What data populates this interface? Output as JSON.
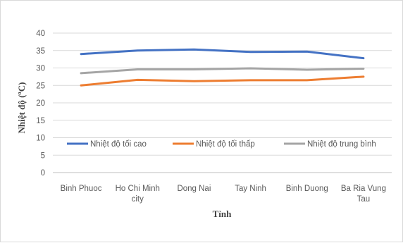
{
  "chart_data": {
    "type": "line",
    "categories": [
      [
        "Binh Phuoc"
      ],
      [
        "Ho Chi Minh",
        "city"
      ],
      [
        "Dong Nai"
      ],
      [
        "Tay Ninh"
      ],
      [
        "Binh Duong"
      ],
      [
        "Ba Ria Vung",
        "Tau"
      ]
    ],
    "series": [
      {
        "name": "Nhiệt độ tối cao",
        "color": "#4472C4",
        "values": [
          34.0,
          35.0,
          35.3,
          34.6,
          34.7,
          32.8
        ]
      },
      {
        "name": "Nhiệt độ tối thấp",
        "color": "#ED7D31",
        "values": [
          25.0,
          26.6,
          26.2,
          26.5,
          26.5,
          27.5
        ]
      },
      {
        "name": "Nhiệt độ trung bình",
        "color": "#A5A5A5",
        "values": [
          28.5,
          29.6,
          29.6,
          29.9,
          29.5,
          29.8
        ]
      }
    ],
    "xlabel": "Tỉnh",
    "ylabel": "Nhiệt độ (ºC)",
    "ylim": [
      0,
      40
    ],
    "yticks": [
      0,
      5,
      10,
      15,
      20,
      25,
      30,
      35,
      40
    ],
    "grid": true,
    "legend": "inside-bottom"
  }
}
